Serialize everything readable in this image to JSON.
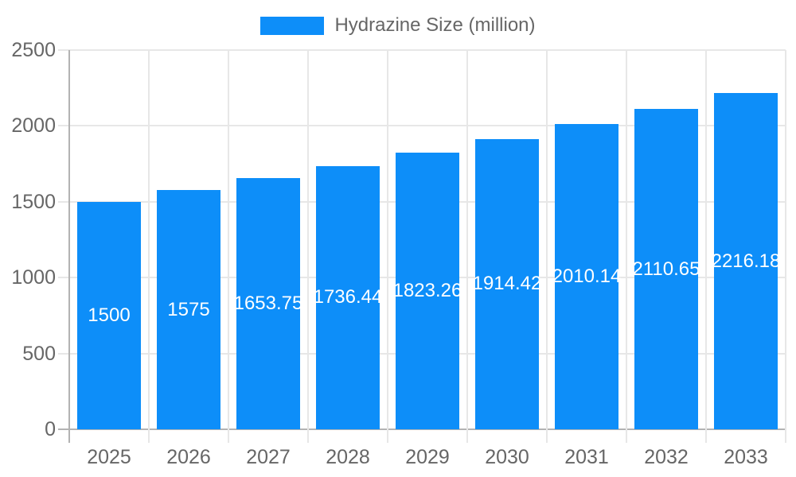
{
  "chart_data": {
    "type": "bar",
    "title": "",
    "legend": "Hydrazine Size (million)",
    "legend_position": "top",
    "categories": [
      "2025",
      "2026",
      "2027",
      "2028",
      "2029",
      "2030",
      "2031",
      "2032",
      "2033"
    ],
    "values": [
      1500,
      1575,
      1653.75,
      1736.44,
      1823.26,
      1914.42,
      2010.14,
      2110.65,
      2216.18
    ],
    "bar_labels": [
      "1500",
      "1575",
      "1653.75",
      "1736.44",
      "1823.26",
      "1914.42",
      "2010.14",
      "2110.65",
      "2216.18"
    ],
    "xlabel": "",
    "ylabel": "",
    "ylim": [
      0,
      2500
    ],
    "yticks": [
      0,
      500,
      1000,
      1500,
      2000,
      2500
    ],
    "grid": true
  },
  "colors": {
    "bar": "#0d8ef9",
    "axis_text": "#666666",
    "grid_line": "#e7e7e7",
    "zero_line": "#b3b3b3",
    "bar_label_text": "#ffffff",
    "background": "#ffffff"
  }
}
